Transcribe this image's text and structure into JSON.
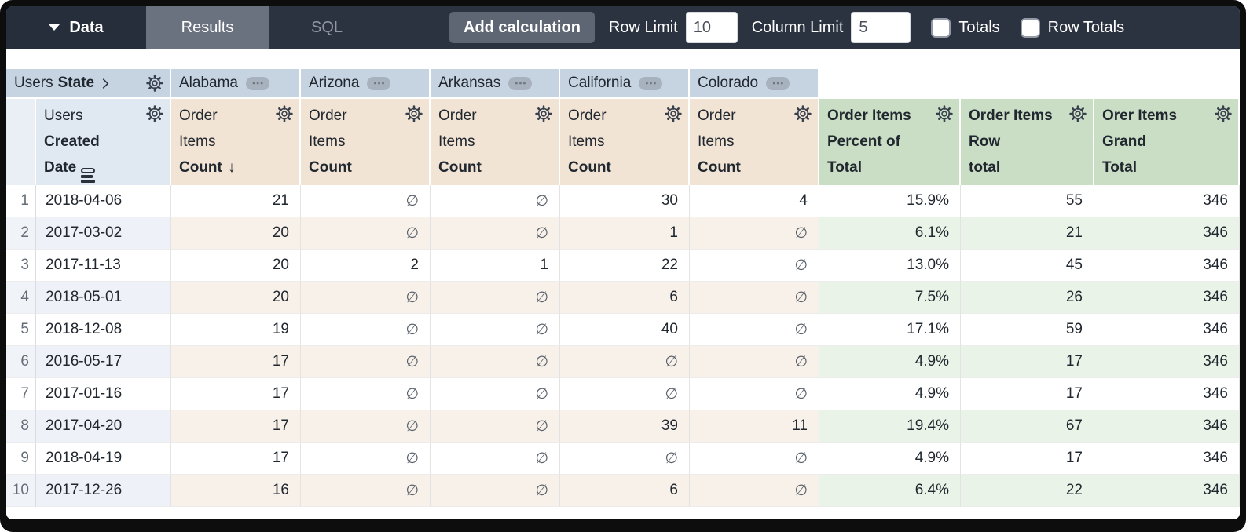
{
  "toolbar": {
    "data_tab": "Data",
    "results_tab": "Results",
    "sql_tab": "SQL",
    "add_calculation": "Add calculation",
    "row_limit_label": "Row Limit",
    "row_limit_value": "10",
    "column_limit_label": "Column Limit",
    "column_limit_value": "5",
    "totals_label": "Totals",
    "row_totals_label": "Row Totals"
  },
  "table": {
    "pivot": {
      "dimension_prefix": "Users",
      "dimension_name": "State",
      "values": [
        "Alabama",
        "Arizona",
        "Arkansas",
        "California",
        "Colorado"
      ]
    },
    "row_field": {
      "line1": "Users",
      "line2": "Created",
      "line3": "Date"
    },
    "measure": {
      "line1": "Order",
      "line2": "Items",
      "line3": "Count",
      "sort_arrow": "↓"
    },
    "calc_headers": [
      {
        "line1": "Order Items",
        "line2": "Percent of",
        "line3": "Total"
      },
      {
        "line1": "Order Items",
        "line2": "Row",
        "line3": "total"
      },
      {
        "line1": "Orer Items",
        "line2": "Grand",
        "line3": "Total"
      }
    ],
    "null_symbol": "∅",
    "rows": [
      {
        "n": "1",
        "date": "2018-04-06",
        "alabama": "21",
        "arizona": "∅",
        "arkansas": "∅",
        "california": "30",
        "colorado": "4",
        "pct": "15.9%",
        "row_total": "55",
        "grand_total": "346"
      },
      {
        "n": "2",
        "date": "2017-03-02",
        "alabama": "20",
        "arizona": "∅",
        "arkansas": "∅",
        "california": "1",
        "colorado": "∅",
        "pct": "6.1%",
        "row_total": "21",
        "grand_total": "346"
      },
      {
        "n": "3",
        "date": "2017-11-13",
        "alabama": "20",
        "arizona": "2",
        "arkansas": "1",
        "california": "22",
        "colorado": "∅",
        "pct": "13.0%",
        "row_total": "45",
        "grand_total": "346"
      },
      {
        "n": "4",
        "date": "2018-05-01",
        "alabama": "20",
        "arizona": "∅",
        "arkansas": "∅",
        "california": "6",
        "colorado": "∅",
        "pct": "7.5%",
        "row_total": "26",
        "grand_total": "346"
      },
      {
        "n": "5",
        "date": "2018-12-08",
        "alabama": "19",
        "arizona": "∅",
        "arkansas": "∅",
        "california": "40",
        "colorado": "∅",
        "pct": "17.1%",
        "row_total": "59",
        "grand_total": "346"
      },
      {
        "n": "6",
        "date": "2016-05-17",
        "alabama": "17",
        "arizona": "∅",
        "arkansas": "∅",
        "california": "∅",
        "colorado": "∅",
        "pct": "4.9%",
        "row_total": "17",
        "grand_total": "346"
      },
      {
        "n": "7",
        "date": "2017-01-16",
        "alabama": "17",
        "arizona": "∅",
        "arkansas": "∅",
        "california": "∅",
        "colorado": "∅",
        "pct": "4.9%",
        "row_total": "17",
        "grand_total": "346"
      },
      {
        "n": "8",
        "date": "2017-04-20",
        "alabama": "17",
        "arizona": "∅",
        "arkansas": "∅",
        "california": "39",
        "colorado": "11",
        "pct": "19.4%",
        "row_total": "67",
        "grand_total": "346"
      },
      {
        "n": "9",
        "date": "2018-04-19",
        "alabama": "17",
        "arizona": "∅",
        "arkansas": "∅",
        "california": "∅",
        "colorado": "∅",
        "pct": "4.9%",
        "row_total": "17",
        "grand_total": "346"
      },
      {
        "n": "10",
        "date": "2017-12-26",
        "alabama": "16",
        "arizona": "∅",
        "arkansas": "∅",
        "california": "6",
        "colorado": "∅",
        "pct": "6.4%",
        "row_total": "22",
        "grand_total": "346"
      }
    ]
  },
  "colors": {
    "toolbar_bg": "#2b3240",
    "results_tab_bg": "#6a7280",
    "pivot_header_bg": "#c6d3e1",
    "dimension_header_bg": "#e0e8f2",
    "measure_header_bg": "#f2e4d5",
    "calc_header_bg": "#cadec6"
  }
}
